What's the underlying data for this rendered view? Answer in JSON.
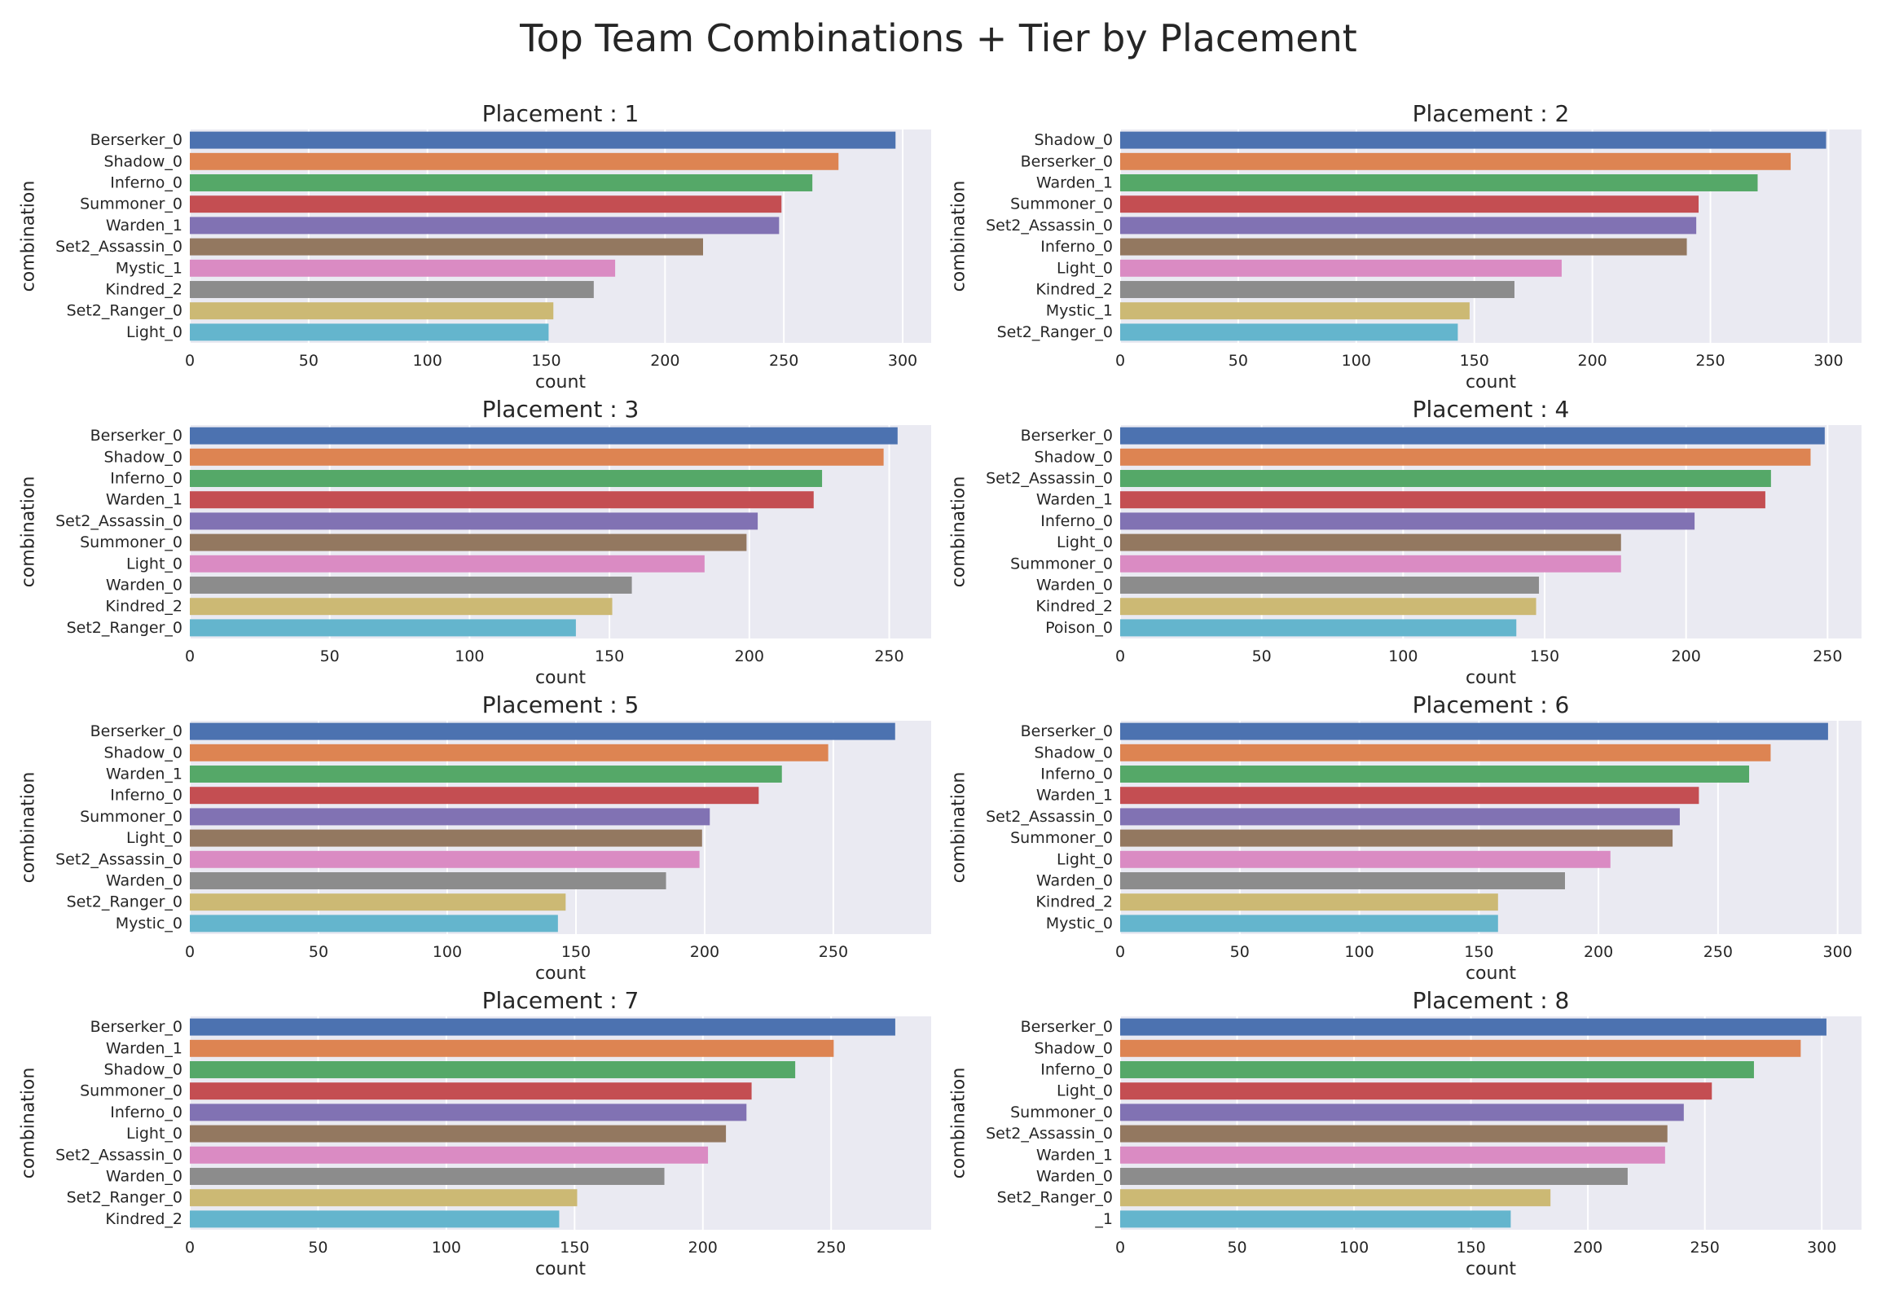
{
  "title": "Top Team Combinations + Tier by Placement",
  "colors": {
    "palette": [
      "#4c72b0",
      "#dd8452",
      "#55a868",
      "#c44e52",
      "#8172b3",
      "#937860",
      "#da8bc3",
      "#8c8c8c",
      "#ccb974",
      "#64b5cd"
    ],
    "axes_bg": "#eaeaf2",
    "grid": "#ffffff",
    "text": "#262626"
  },
  "chart_data": [
    {
      "type": "bar",
      "orientation": "horizontal",
      "title": "Placement : 1",
      "xlabel": "count",
      "ylabel": "combination",
      "xlim": [
        0,
        312
      ],
      "xticks": [
        0,
        50,
        100,
        150,
        200,
        250,
        300
      ],
      "grid": true,
      "categories": [
        "Berserker_0",
        "Shadow_0",
        "Inferno_0",
        "Summoner_0",
        "Warden_1",
        "Set2_Assassin_0",
        "Mystic_1",
        "Kindred_2",
        "Set2_Ranger_0",
        "Light_0"
      ],
      "values": [
        297,
        273,
        262,
        249,
        248,
        216,
        179,
        170,
        153,
        151
      ]
    },
    {
      "type": "bar",
      "orientation": "horizontal",
      "title": "Placement : 2",
      "xlabel": "count",
      "ylabel": "combination",
      "xlim": [
        0,
        314
      ],
      "xticks": [
        0,
        50,
        100,
        150,
        200,
        250,
        300
      ],
      "grid": true,
      "categories": [
        "Shadow_0",
        "Berserker_0",
        "Warden_1",
        "Summoner_0",
        "Set2_Assassin_0",
        "Inferno_0",
        "Light_0",
        "Kindred_2",
        "Mystic_1",
        "Set2_Ranger_0"
      ],
      "values": [
        299,
        284,
        270,
        245,
        244,
        240,
        187,
        167,
        148,
        143
      ]
    },
    {
      "type": "bar",
      "orientation": "horizontal",
      "title": "Placement : 3",
      "xlabel": "count",
      "ylabel": "combination",
      "xlim": [
        0,
        265
      ],
      "xticks": [
        0,
        50,
        100,
        150,
        200,
        250
      ],
      "grid": true,
      "categories": [
        "Berserker_0",
        "Shadow_0",
        "Inferno_0",
        "Warden_1",
        "Set2_Assassin_0",
        "Summoner_0",
        "Light_0",
        "Warden_0",
        "Kindred_2",
        "Set2_Ranger_0"
      ],
      "values": [
        253,
        248,
        226,
        223,
        203,
        199,
        184,
        158,
        151,
        138
      ]
    },
    {
      "type": "bar",
      "orientation": "horizontal",
      "title": "Placement : 4",
      "xlabel": "count",
      "ylabel": "combination",
      "xlim": [
        0,
        262
      ],
      "xticks": [
        0,
        50,
        100,
        150,
        200,
        250
      ],
      "grid": true,
      "categories": [
        "Berserker_0",
        "Shadow_0",
        "Set2_Assassin_0",
        "Warden_1",
        "Inferno_0",
        "Light_0",
        "Summoner_0",
        "Warden_0",
        "Kindred_2",
        "Poison_0"
      ],
      "values": [
        249,
        244,
        230,
        228,
        203,
        177,
        177,
        148,
        147,
        140
      ]
    },
    {
      "type": "bar",
      "orientation": "horizontal",
      "title": "Placement : 5",
      "xlabel": "count",
      "ylabel": "combination",
      "xlim": [
        0,
        288
      ],
      "xticks": [
        0,
        50,
        100,
        150,
        200,
        250
      ],
      "grid": true,
      "categories": [
        "Berserker_0",
        "Shadow_0",
        "Warden_1",
        "Inferno_0",
        "Summoner_0",
        "Light_0",
        "Set2_Assassin_0",
        "Warden_0",
        "Set2_Ranger_0",
        "Mystic_0"
      ],
      "values": [
        274,
        248,
        230,
        221,
        202,
        199,
        198,
        185,
        146,
        143
      ]
    },
    {
      "type": "bar",
      "orientation": "horizontal",
      "title": "Placement : 6",
      "xlabel": "count",
      "ylabel": "combination",
      "xlim": [
        0,
        310
      ],
      "xticks": [
        0,
        50,
        100,
        150,
        200,
        250,
        300
      ],
      "grid": true,
      "categories": [
        "Berserker_0",
        "Shadow_0",
        "Inferno_0",
        "Warden_1",
        "Set2_Assassin_0",
        "Summoner_0",
        "Light_0",
        "Warden_0",
        "Kindred_2",
        "Mystic_0"
      ],
      "values": [
        296,
        272,
        263,
        242,
        234,
        231,
        205,
        186,
        158,
        158
      ]
    },
    {
      "type": "bar",
      "orientation": "horizontal",
      "title": "Placement : 7",
      "xlabel": "count",
      "ylabel": "combination",
      "xlim": [
        0,
        289
      ],
      "xticks": [
        0,
        50,
        100,
        150,
        200,
        250
      ],
      "grid": true,
      "categories": [
        "Berserker_0",
        "Warden_1",
        "Shadow_0",
        "Summoner_0",
        "Inferno_0",
        "Light_0",
        "Set2_Assassin_0",
        "Warden_0",
        "Set2_Ranger_0",
        "Kindred_2"
      ],
      "values": [
        275,
        251,
        236,
        219,
        217,
        209,
        202,
        185,
        151,
        144
      ]
    },
    {
      "type": "bar",
      "orientation": "horizontal",
      "title": "Placement : 8",
      "xlabel": "count",
      "ylabel": "combination",
      "xlim": [
        0,
        317
      ],
      "xticks": [
        0,
        50,
        100,
        150,
        200,
        250,
        300
      ],
      "grid": true,
      "categories": [
        "Berserker_0",
        "Shadow_0",
        "Inferno_0",
        "Light_0",
        "Summoner_0",
        "Set2_Assassin_0",
        "Warden_1",
        "Warden_0",
        "Set2_Ranger_0",
        "_1"
      ],
      "values": [
        302,
        291,
        271,
        253,
        241,
        234,
        233,
        217,
        184,
        167
      ]
    }
  ]
}
